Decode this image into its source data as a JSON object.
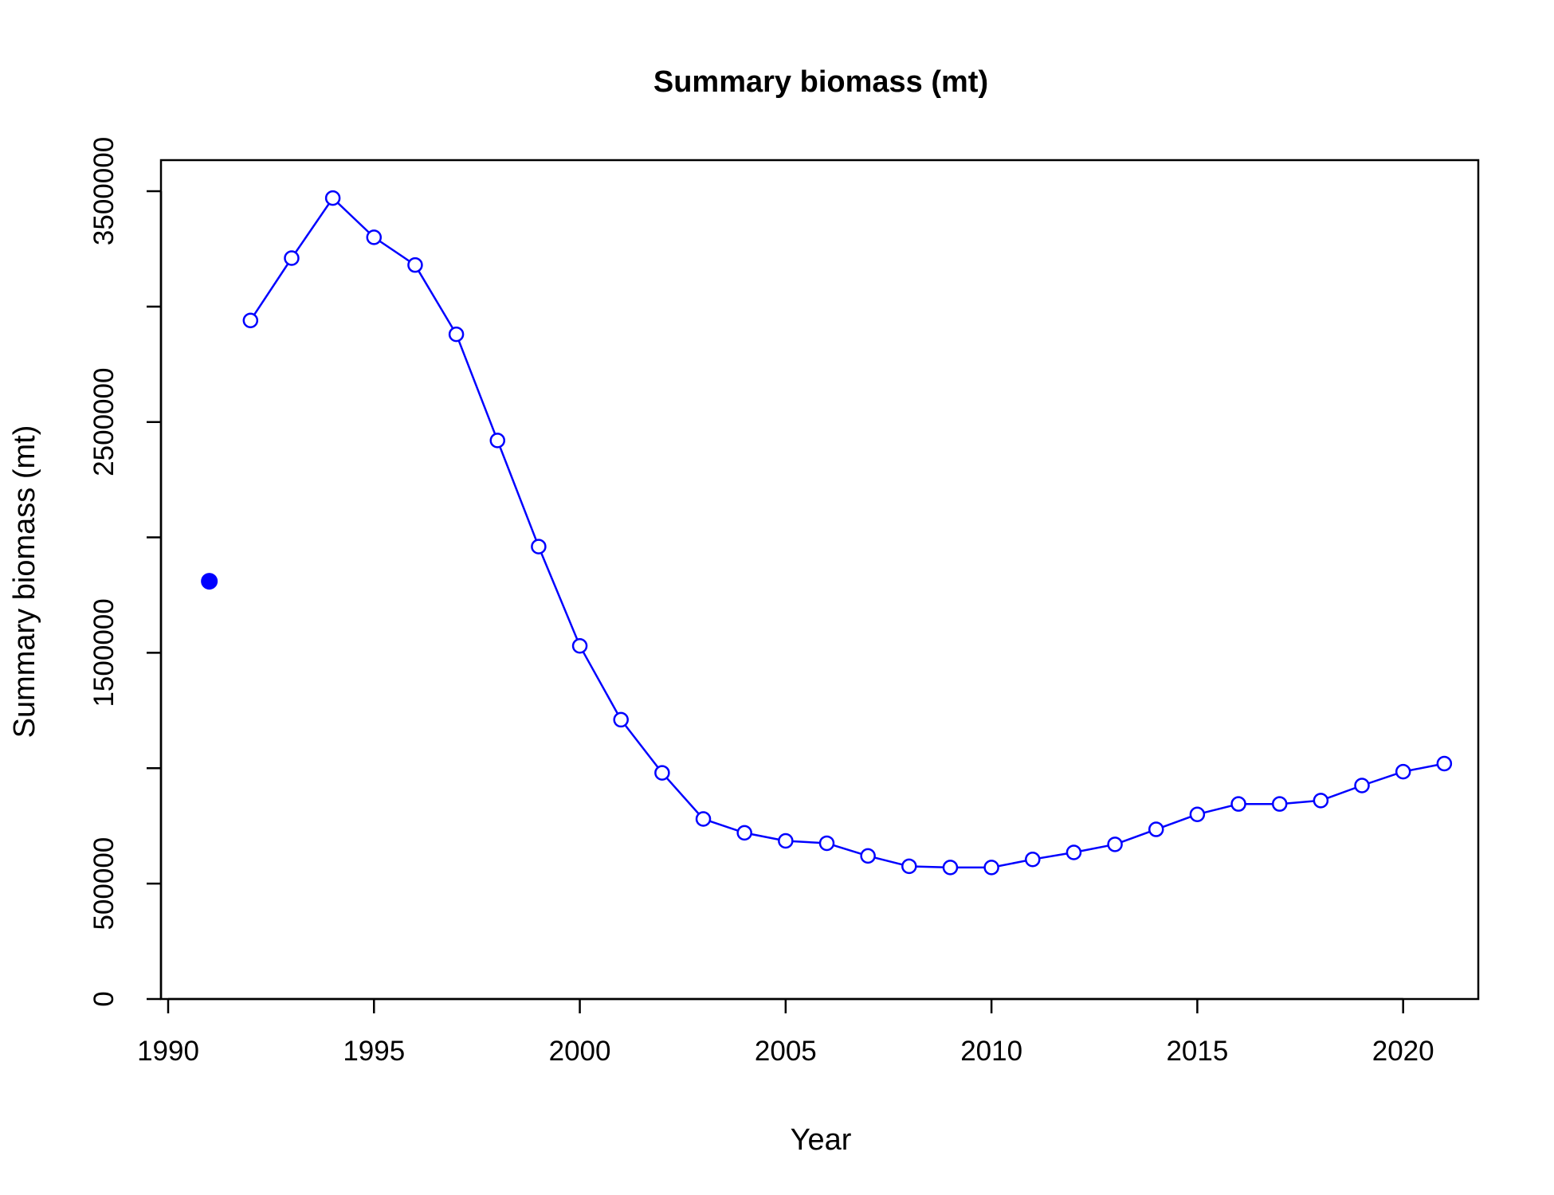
{
  "chart_data": {
    "type": "line",
    "title": "Summary biomass (mt)",
    "xlabel": "Year",
    "ylabel": "Summary biomass (mt)",
    "xlim": [
      1990,
      2022
    ],
    "ylim": [
      0,
      3600000
    ],
    "x_ticks": [
      1990,
      1995,
      2000,
      2005,
      2010,
      2015,
      2020
    ],
    "x_tick_labels": [
      "1990",
      "1995",
      "2000",
      "2005",
      "2010",
      "2015",
      "2020"
    ],
    "y_ticks": [
      0,
      500000,
      1000000,
      1500000,
      2000000,
      2500000,
      3000000,
      3500000
    ],
    "y_tick_labels": [
      "0",
      "500000",
      "",
      "1500000",
      "",
      "2500000",
      "",
      "3500000"
    ],
    "grid": false,
    "colors": {
      "series": "#0000ff",
      "axis": "#000000"
    },
    "initial_point": {
      "x": 1991,
      "y": 1810000,
      "marker": "filled-circle"
    },
    "series": [
      {
        "marker": "open-circle",
        "x": [
          1992,
          1993,
          1994,
          1995,
          1996,
          1997,
          1998,
          1999,
          2000,
          2001,
          2002,
          2003,
          2004,
          2005,
          2006,
          2007,
          2008,
          2009,
          2010,
          2011,
          2012,
          2013,
          2014,
          2015,
          2016,
          2017,
          2018,
          2019,
          2020,
          2021
        ],
        "y": [
          2940000,
          3210000,
          3470000,
          3300000,
          3180000,
          2880000,
          2420000,
          1960000,
          1530000,
          1210000,
          980000,
          780000,
          720000,
          685000,
          675000,
          620000,
          575000,
          570000,
          570000,
          605000,
          635000,
          670000,
          735000,
          800000,
          845000,
          845000,
          860000,
          925000,
          985000,
          1020000
        ]
      }
    ]
  }
}
